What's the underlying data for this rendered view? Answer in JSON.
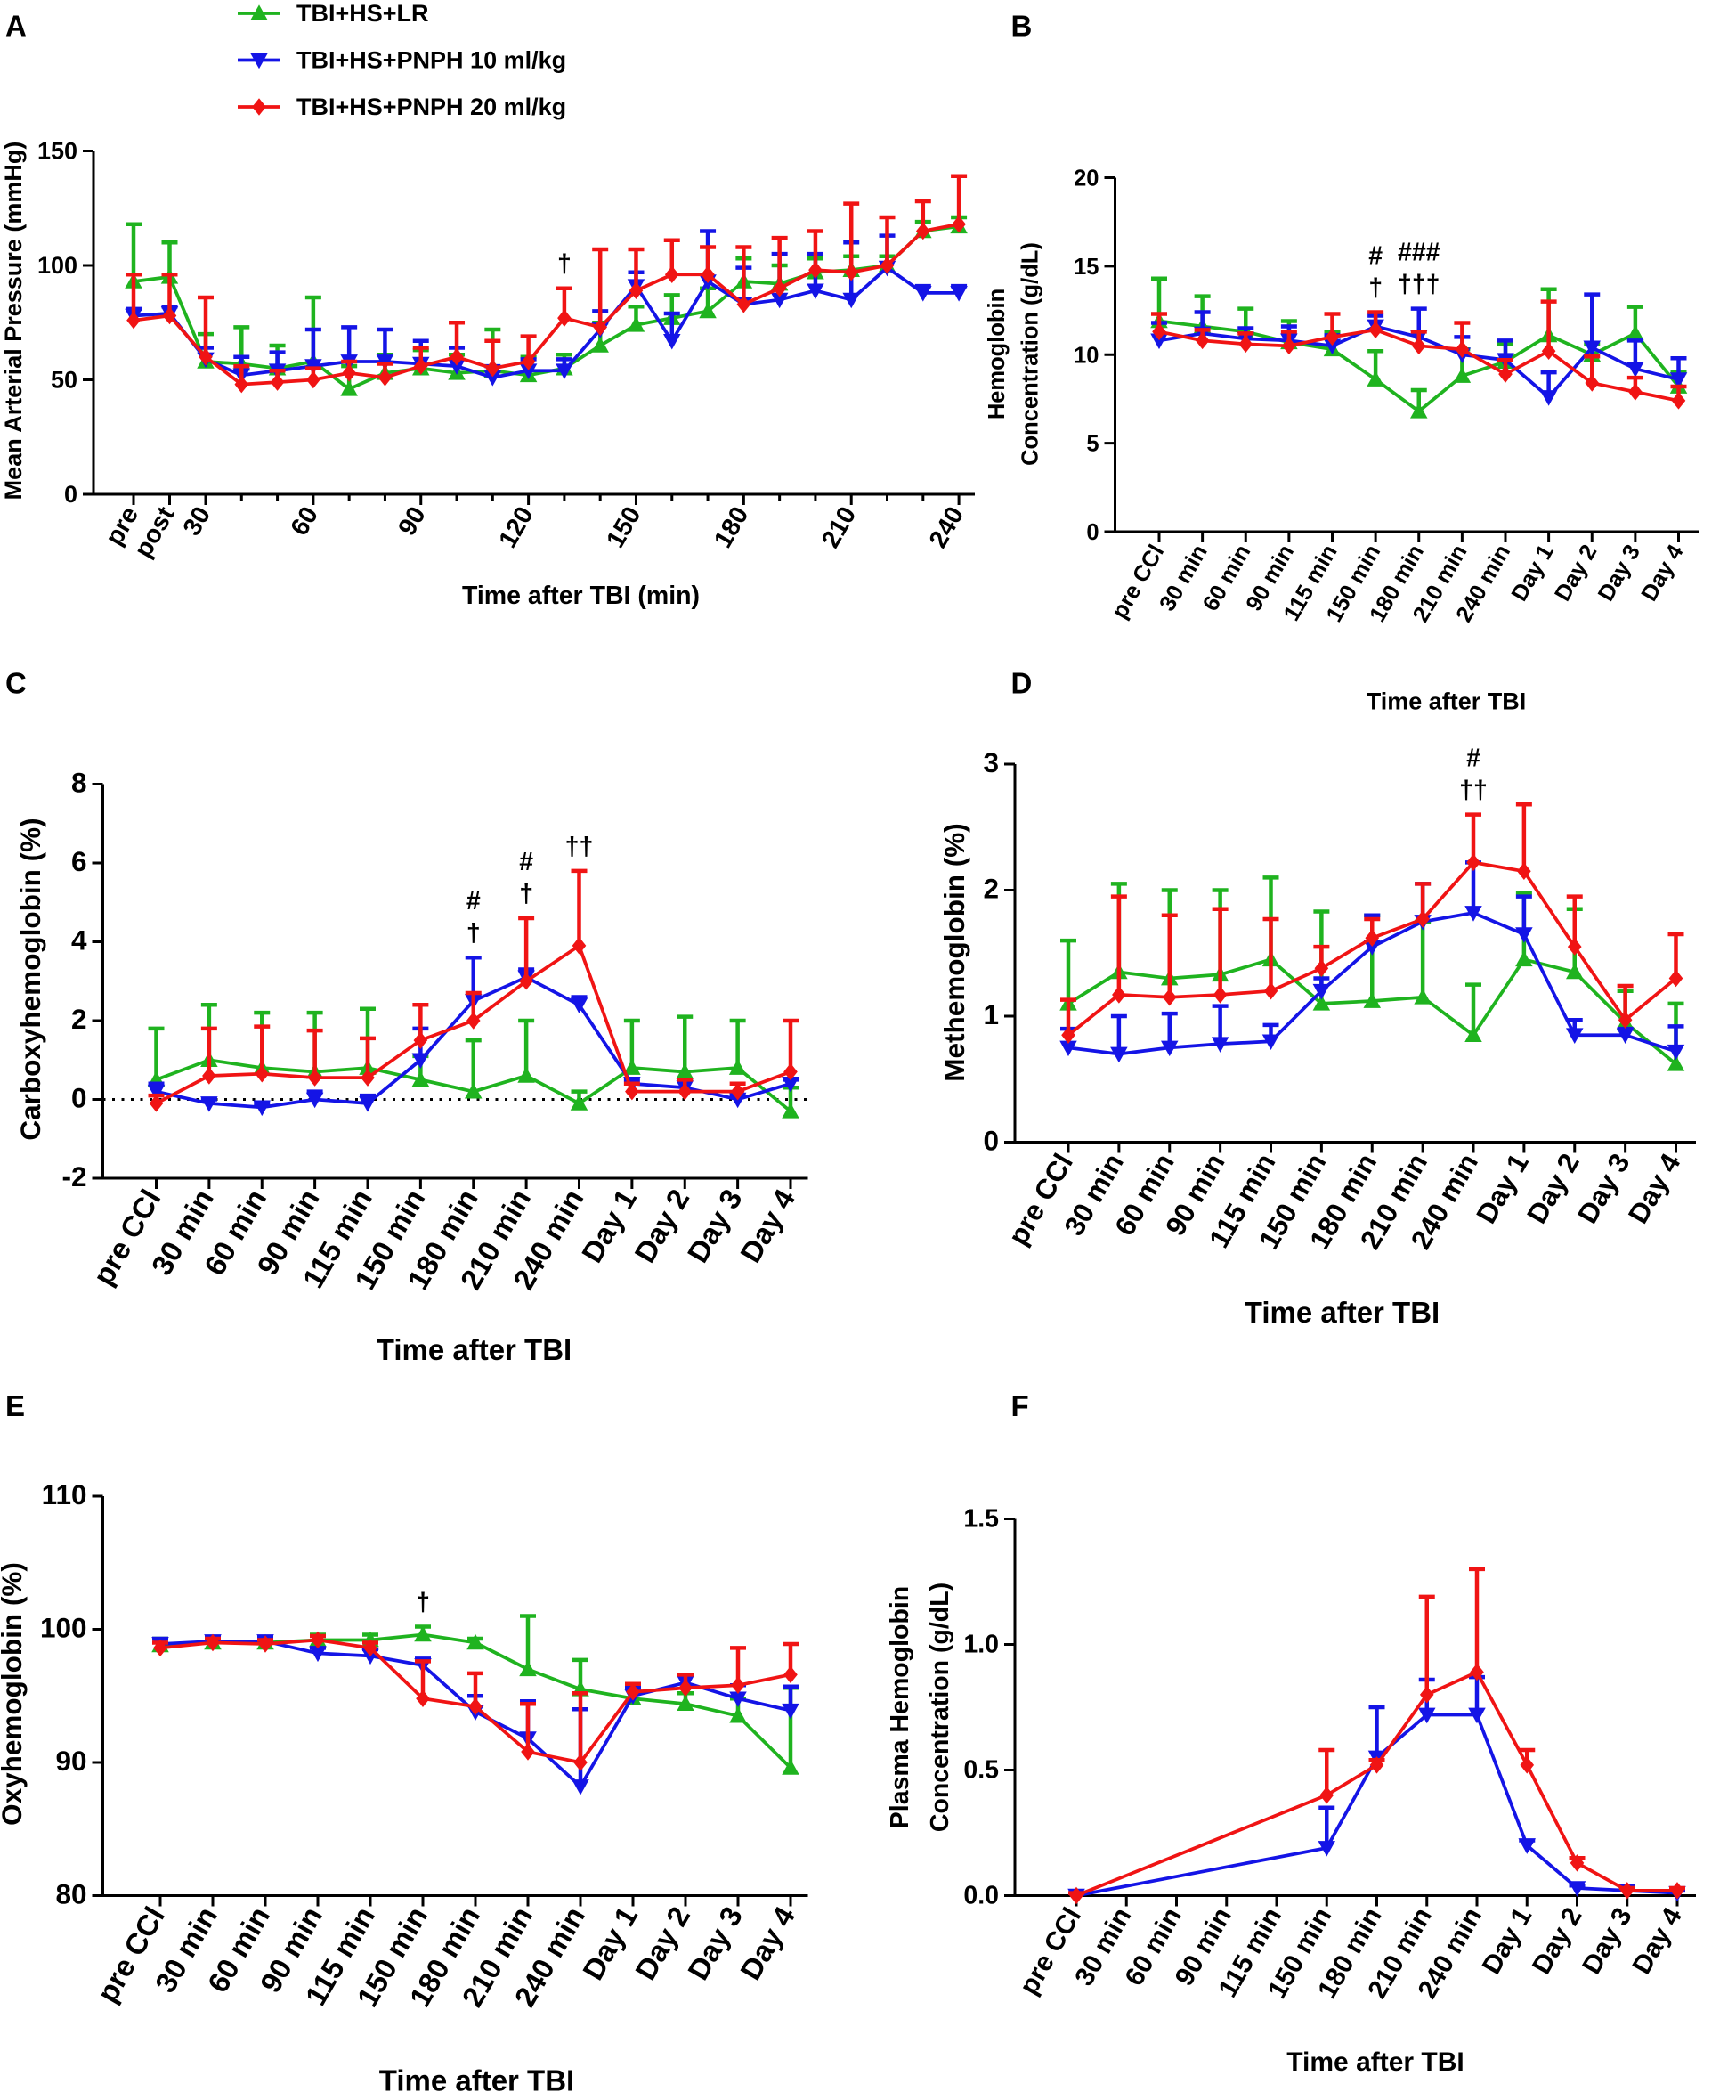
{
  "legend": {
    "position": "top-left",
    "entries": [
      {
        "name": "TBI+HS+LR",
        "color": "#1fb31f",
        "marker": "triangle-up"
      },
      {
        "name": "TBI+HS+PNPH 10 ml/kg",
        "color": "#1414e6",
        "marker": "triangle-down"
      },
      {
        "name": "TBI+HS+PNPH 20 ml/kg",
        "color": "#f01414",
        "marker": "diamond"
      }
    ]
  },
  "chart_data": [
    {
      "panel": "A",
      "type": "line",
      "ylabel": "Mean Arterial Pressure (mmHg)",
      "xlabel": "Time after TBI (min)",
      "ylim": [
        0,
        150
      ],
      "yticks": [
        "0",
        "50",
        "100",
        "150"
      ],
      "categories": [
        "pre",
        "post",
        "30",
        "40",
        "50",
        "60",
        "70",
        "80",
        "90",
        "100",
        "110",
        "120",
        "130",
        "140",
        "150",
        "160",
        "170",
        "180",
        "190",
        "200",
        "210",
        "220",
        "230",
        "240"
      ],
      "tick_labels": [
        "pre",
        "post",
        "30",
        "",
        "",
        "60",
        "",
        "",
        "90",
        "",
        "",
        "120",
        "",
        "",
        "150",
        "",
        "",
        "180",
        "",
        "",
        "210",
        "",
        "",
        "240"
      ],
      "series": [
        {
          "name": "TBI+HS+LR",
          "values": [
            93,
            95,
            58,
            57,
            55,
            58,
            46,
            53,
            55,
            53,
            54,
            52,
            55,
            65,
            74,
            77,
            80,
            93,
            92,
            97,
            98,
            100,
            115,
            117
          ],
          "error": [
            25,
            15,
            12,
            16,
            10,
            28,
            10,
            8,
            8,
            8,
            18,
            8,
            6,
            10,
            8,
            10,
            10,
            10,
            8,
            6,
            6,
            4,
            4,
            4
          ]
        },
        {
          "name": "TBI+HS+PNPH 10 ml/kg",
          "values": [
            78,
            79,
            59,
            52,
            54,
            56,
            58,
            58,
            57,
            56,
            51,
            54,
            54,
            72,
            91,
            67,
            93,
            83,
            85,
            89,
            85,
            99,
            88,
            88
          ],
          "error": [
            3,
            3,
            5,
            8,
            8,
            16,
            15,
            14,
            10,
            8,
            5,
            5,
            5,
            8,
            6,
            12,
            22,
            16,
            20,
            16,
            25,
            14,
            3,
            3
          ]
        },
        {
          "name": "TBI+HS+PNPH 20 ml/kg",
          "values": [
            76,
            78,
            60,
            48,
            49,
            50,
            53,
            51,
            56,
            60,
            55,
            58,
            77,
            73,
            89,
            96,
            96,
            83,
            90,
            98,
            97,
            100,
            115,
            118
          ],
          "error": [
            20,
            18,
            26,
            8,
            5,
            5,
            5,
            6,
            8,
            15,
            12,
            11,
            13,
            34,
            18,
            15,
            12,
            25,
            22,
            17,
            30,
            21,
            13,
            21
          ]
        }
      ],
      "annotations": [
        {
          "category": "130",
          "lines": [
            "†"
          ]
        }
      ]
    },
    {
      "panel": "B",
      "type": "line",
      "ylabel": [
        "Hemoglobin",
        "Concentration (g/dL)"
      ],
      "xlabel": "Time after TBI",
      "ylim": [
        0,
        20
      ],
      "yticks": [
        "0",
        "5",
        "10",
        "15",
        "20"
      ],
      "categories": [
        "pre CCl",
        "30 min",
        "60 min",
        "90 min",
        "115 min",
        "150 min",
        "180 min",
        "210 min",
        "240 min",
        "Day 1",
        "Day 2",
        "Day 3",
        "Day 4"
      ],
      "series": [
        {
          "name": "TBI+HS+LR",
          "values": [
            11.9,
            11.6,
            11.3,
            10.7,
            10.3,
            8.6,
            6.8,
            8.8,
            9.6,
            11.1,
            10.0,
            11.2,
            8.2
          ],
          "error": [
            2.4,
            1.7,
            1.3,
            1.2,
            1.0,
            1.6,
            1.2,
            1.5,
            1.0,
            2.6,
            0.6,
            1.5,
            0.8
          ]
        },
        {
          "name": "TBI+HS+PNPH 10 ml/kg",
          "values": [
            10.8,
            11.2,
            10.9,
            10.8,
            10.5,
            11.6,
            11.0,
            10.0,
            9.7,
            7.6,
            10.4,
            9.2,
            8.6
          ],
          "error": [
            1.0,
            1.2,
            0.6,
            0.8,
            0.6,
            0.6,
            1.6,
            1.0,
            1.1,
            1.4,
            3.0,
            1.6,
            1.2
          ]
        },
        {
          "name": "TBI+HS+PNPH 20 ml/kg",
          "values": [
            11.3,
            10.8,
            10.6,
            10.5,
            11.0,
            11.4,
            10.5,
            10.3,
            8.9,
            10.2,
            8.4,
            7.9,
            7.4
          ],
          "error": [
            1.0,
            0.6,
            0.6,
            0.8,
            1.3,
            1.0,
            0.8,
            1.5,
            0.8,
            2.8,
            1.5,
            0.8,
            0.8
          ]
        }
      ],
      "annotations": [
        {
          "category": "150 min",
          "lines": [
            "#",
            "†"
          ]
        },
        {
          "category": "180 min",
          "lines": [
            "###",
            "†††"
          ]
        }
      ]
    },
    {
      "panel": "C",
      "type": "line",
      "ylabel": "Carboxyhemoglobin (%)",
      "xlabel": "Time after TBI",
      "ylim": [
        -2,
        8
      ],
      "yticks": [
        "-2",
        "0",
        "2",
        "4",
        "6",
        "8"
      ],
      "reference_line": 0,
      "categories": [
        "pre CCl",
        "30 min",
        "60 min",
        "90 min",
        "115 min",
        "150 min",
        "180 min",
        "210 min",
        "240 min",
        "Day 1",
        "Day 2",
        "Day 3",
        "Day 4"
      ],
      "series": [
        {
          "name": "TBI+HS+LR",
          "values": [
            0.5,
            1.0,
            0.8,
            0.7,
            0.8,
            0.5,
            0.2,
            0.6,
            -0.1,
            0.8,
            0.7,
            0.8,
            -0.3
          ],
          "error": [
            1.3,
            1.4,
            1.4,
            1.5,
            1.5,
            0.6,
            1.3,
            1.4,
            0.3,
            1.2,
            1.4,
            1.2,
            0.6
          ]
        },
        {
          "name": "TBI+HS+PNPH 10 ml/kg",
          "values": [
            0.2,
            -0.1,
            -0.2,
            0.0,
            -0.1,
            1.0,
            2.5,
            3.1,
            2.4,
            0.4,
            0.3,
            0.0,
            0.4
          ],
          "error": [
            0.2,
            0.1,
            0.1,
            0.2,
            0.2,
            0.8,
            1.1,
            0.2,
            0.2,
            0.1,
            0.2,
            0.1,
            0.1
          ]
        },
        {
          "name": "TBI+HS+PNPH 20 ml/kg",
          "values": [
            -0.1,
            0.6,
            0.65,
            0.55,
            0.55,
            1.5,
            2.0,
            3.0,
            3.9,
            0.2,
            0.2,
            0.2,
            0.7
          ],
          "error": [
            0.2,
            1.2,
            1.2,
            1.2,
            1.0,
            0.9,
            0.7,
            1.6,
            1.9,
            0.2,
            0.3,
            0.2,
            1.3
          ]
        }
      ],
      "annotations": [
        {
          "category": "180 min",
          "lines": [
            "#",
            "†"
          ]
        },
        {
          "category": "210 min",
          "lines": [
            "#",
            "†"
          ]
        },
        {
          "category": "240 min",
          "lines": [
            "††"
          ]
        }
      ]
    },
    {
      "panel": "D",
      "type": "line",
      "ylabel": "Methemoglobin (%)",
      "xlabel": "Time after TBI",
      "ylim": [
        0,
        3
      ],
      "yticks": [
        "0",
        "1",
        "2",
        "3"
      ],
      "categories": [
        "pre CCl",
        "30 min",
        "60 min",
        "90 min",
        "115 min",
        "150 min",
        "180 min",
        "210 min",
        "240 min",
        "Day 1",
        "Day 2",
        "Day 3",
        "Day 4"
      ],
      "series": [
        {
          "name": "TBI+HS+LR",
          "values": [
            1.1,
            1.35,
            1.3,
            1.33,
            1.45,
            1.1,
            1.12,
            1.15,
            0.85,
            1.45,
            1.35,
            0.95,
            0.62
          ],
          "error": [
            0.5,
            0.7,
            0.7,
            0.67,
            0.65,
            0.73,
            0.68,
            0.6,
            0.4,
            0.53,
            0.5,
            0.25,
            0.48
          ]
        },
        {
          "name": "TBI+HS+PNPH 10 ml/kg",
          "values": [
            0.75,
            0.7,
            0.75,
            0.78,
            0.8,
            1.2,
            1.55,
            1.75,
            1.82,
            1.65,
            0.85,
            0.85,
            0.72
          ],
          "error": [
            0.15,
            0.3,
            0.27,
            0.3,
            0.13,
            0.1,
            0.25,
            0.3,
            0.4,
            0.3,
            0.12,
            0.05,
            0.2
          ]
        },
        {
          "name": "TBI+HS+PNPH 20 ml/kg",
          "values": [
            0.85,
            1.17,
            1.15,
            1.17,
            1.2,
            1.38,
            1.62,
            1.77,
            2.22,
            2.15,
            1.55,
            0.97,
            1.3
          ],
          "error": [
            0.28,
            0.78,
            0.65,
            0.68,
            0.57,
            0.17,
            0.15,
            0.28,
            0.38,
            0.53,
            0.4,
            0.27,
            0.35
          ]
        }
      ],
      "annotations": [
        {
          "category": "240 min",
          "lines": [
            "#",
            "††"
          ]
        }
      ]
    },
    {
      "panel": "E",
      "type": "line",
      "ylabel": "Oxyhemoglobin (%)",
      "xlabel": "Time after TBI",
      "ylim": [
        80,
        110
      ],
      "yticks": [
        "80",
        "90",
        "100",
        "110"
      ],
      "categories": [
        "pre CCl",
        "30 min",
        "60 min",
        "90 min",
        "115 min",
        "150 min",
        "180 min",
        "210 min",
        "240 min",
        "Day 1",
        "Day 2",
        "Day 3",
        "Day 4"
      ],
      "series": [
        {
          "name": "TBI+HS+LR",
          "values": [
            98.8,
            99.0,
            99.0,
            99.2,
            99.2,
            99.6,
            99.0,
            97.0,
            95.5,
            94.8,
            94.4,
            93.5,
            89.6
          ],
          "error": [
            0.5,
            0.3,
            0.3,
            0.4,
            0.4,
            0.6,
            0.3,
            4.0,
            2.2,
            1.0,
            0.8,
            1.3,
            6.0
          ]
        },
        {
          "name": "TBI+HS+PNPH 10 ml/kg",
          "values": [
            98.9,
            99.1,
            99.1,
            98.2,
            98.0,
            97.3,
            93.8,
            91.8,
            88.2,
            95.0,
            96.0,
            94.8,
            93.9
          ],
          "error": [
            0.4,
            0.3,
            0.3,
            0.4,
            0.5,
            0.5,
            1.2,
            2.8,
            5.8,
            0.6,
            0.6,
            1.0,
            1.8
          ]
        },
        {
          "name": "TBI+HS+PNPH 20 ml/kg",
          "values": [
            98.6,
            99.0,
            98.9,
            99.2,
            98.6,
            94.8,
            94.2,
            90.8,
            90.0,
            95.3,
            95.6,
            95.8,
            96.6
          ],
          "error": [
            0.4,
            0.3,
            0.3,
            0.3,
            0.4,
            2.8,
            2.5,
            3.6,
            5.2,
            0.6,
            1.0,
            2.8,
            2.3
          ]
        }
      ],
      "annotations": [
        {
          "category": "150 min",
          "lines": [
            "†"
          ]
        }
      ]
    },
    {
      "panel": "F",
      "type": "line",
      "ylabel": [
        "Plasma Hemoglobin",
        "Concentration (g/dL)"
      ],
      "xlabel": "Time after TBI",
      "ylim": [
        0,
        1.5
      ],
      "yticks": [
        "0.0",
        "0.5",
        "1.0",
        "1.5"
      ],
      "categories": [
        "pre CCl",
        "30 min",
        "60 min",
        "90 min",
        "115 min",
        "150 min",
        "180 min",
        "210 min",
        "240 min",
        "Day 1",
        "Day 2",
        "Day 3",
        "Day 4"
      ],
      "series": [
        {
          "name": "TBI+HS+PNPH 10 ml/kg",
          "values": [
            0.0,
            null,
            null,
            null,
            null,
            0.19,
            0.55,
            0.72,
            0.72,
            0.2,
            0.03,
            0.02,
            0.01
          ],
          "error": [
            0.01,
            null,
            null,
            null,
            null,
            0.16,
            0.2,
            0.14,
            0.15,
            0.02,
            0.01,
            0.01,
            0.01
          ]
        },
        {
          "name": "TBI+HS+PNPH 20 ml/kg",
          "values": [
            0.0,
            null,
            null,
            null,
            null,
            0.4,
            0.52,
            0.8,
            0.89,
            0.52,
            0.13,
            0.02,
            0.02
          ],
          "error": [
            0.01,
            null,
            null,
            null,
            null,
            0.18,
            0.02,
            0.39,
            0.41,
            0.06,
            0.02,
            0.01,
            0.01
          ]
        }
      ],
      "annotations": []
    }
  ]
}
